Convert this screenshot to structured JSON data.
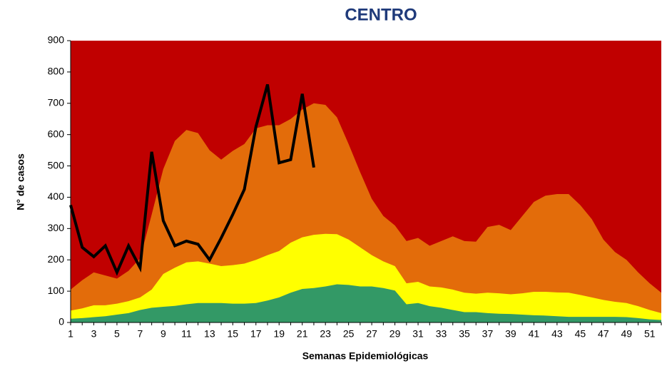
{
  "chart_data": {
    "type": "area",
    "title": "CENTRO",
    "x_label": "Semanas Epidemiológicas",
    "y_label": "N° de casos",
    "categories": [
      1,
      null,
      3,
      null,
      5,
      null,
      7,
      null,
      9,
      null,
      11,
      null,
      13,
      null,
      15,
      null,
      17,
      null,
      19,
      null,
      21,
      null,
      23,
      null,
      25,
      null,
      27,
      null,
      29,
      null,
      31,
      null,
      33,
      null,
      35,
      null,
      37,
      null,
      39,
      null,
      41,
      null,
      43,
      null,
      45,
      null,
      47,
      null,
      49,
      null,
      51,
      null
    ],
    "ylim": [
      0,
      900
    ],
    "yticks": [
      0,
      100,
      200,
      300,
      400,
      500,
      600,
      700,
      800,
      900
    ],
    "plot_background": "#c00000",
    "grid": false,
    "series": [
      {
        "type": "area",
        "color": "#e36c0a",
        "values": [
          105,
          135,
          160,
          150,
          140,
          165,
          205,
          345,
          490,
          580,
          615,
          605,
          550,
          520,
          548,
          570,
          620,
          630,
          630,
          650,
          680,
          700,
          695,
          655,
          570,
          480,
          395,
          340,
          310,
          260,
          270,
          245,
          260,
          275,
          260,
          258,
          305,
          312,
          295,
          340,
          385,
          405,
          410,
          410,
          375,
          330,
          265,
          225,
          200,
          160,
          125,
          95
        ]
      },
      {
        "type": "area",
        "color": "#ffff00",
        "values": [
          38,
          45,
          55,
          55,
          60,
          68,
          80,
          105,
          155,
          175,
          192,
          195,
          188,
          180,
          183,
          188,
          200,
          215,
          228,
          255,
          272,
          280,
          283,
          282,
          265,
          240,
          215,
          195,
          180,
          125,
          130,
          115,
          112,
          105,
          95,
          92,
          95,
          93,
          90,
          93,
          98,
          98,
          96,
          95,
          88,
          80,
          72,
          66,
          62,
          52,
          40,
          30
        ]
      },
      {
        "type": "area",
        "color": "#339966",
        "values": [
          12,
          14,
          17,
          20,
          25,
          30,
          40,
          47,
          50,
          53,
          58,
          62,
          62,
          62,
          60,
          60,
          62,
          70,
          80,
          95,
          107,
          110,
          115,
          122,
          120,
          115,
          115,
          110,
          102,
          58,
          62,
          52,
          47,
          40,
          33,
          33,
          30,
          28,
          27,
          25,
          23,
          22,
          20,
          18,
          18,
          18,
          18,
          18,
          17,
          14,
          10,
          8
        ]
      },
      {
        "type": "line",
        "color": "#000000",
        "values": [
          375,
          240,
          210,
          245,
          160,
          245,
          175,
          545,
          325,
          245,
          260,
          250,
          200,
          270,
          345,
          425,
          625,
          760,
          510,
          520,
          730,
          495,
          null,
          null,
          null,
          null,
          null,
          null,
          null,
          null,
          null,
          null,
          null,
          null,
          null,
          null,
          null,
          null,
          null,
          null,
          null,
          null,
          null,
          null,
          null,
          null,
          null,
          null,
          null,
          null,
          null,
          null
        ]
      }
    ]
  }
}
